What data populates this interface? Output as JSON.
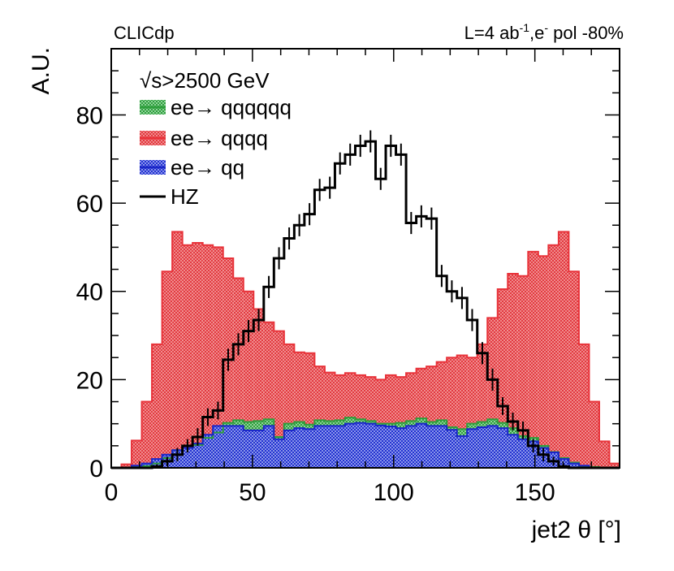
{
  "chart_data": {
    "type": "histogram",
    "xlabel": "jet2 θ [°]",
    "ylabel": "A.U.",
    "xlim": [
      0,
      180
    ],
    "ylim": [
      0,
      95
    ],
    "x_ticks": [
      0,
      50,
      100,
      150
    ],
    "y_ticks": [
      0,
      20,
      40,
      60,
      80
    ],
    "bin_width": 3.6,
    "top_left_label": "CLICdp",
    "top_right_label": "L=4 ab^-1,e^- pol -80%",
    "top_right_parts": {
      "lumi": "L=4 ab",
      "lumi_exp": "-1",
      "beam": ",e",
      "beam_exp": "-",
      "pol": " pol -80%"
    },
    "legend": {
      "header_sqrt": "√",
      "header_rest": "s>2500 GeV",
      "entries": [
        {
          "label": "ee→ qqqqqq",
          "key": "qqqqqq"
        },
        {
          "label": "ee→ qqqq",
          "key": "qqqq"
        },
        {
          "label": "ee→ qq",
          "key": "qq"
        },
        {
          "label": "HZ",
          "key": "hz"
        }
      ]
    },
    "series": [
      {
        "name": "ee→ qqqqqq",
        "key": "qqqqqq",
        "style": "stacked-fill",
        "fill": "#2e9e3c",
        "stroke": "#2e9e3c",
        "values": [
          0,
          0.1,
          0.2,
          0.4,
          1.0,
          2.2,
          4.0,
          4.5,
          5.2,
          6.8,
          8.0,
          10.2,
          10.8,
          10.4,
          10.6,
          11.0,
          7.0,
          10.0,
          10.4,
          9.8,
          10.8,
          10.6,
          10.8,
          11.4,
          11.0,
          10.6,
          10.0,
          10.0,
          10.2,
          10.6,
          11.2,
          10.4,
          10.8,
          9.2,
          8.8,
          10.0,
          10.4,
          11.0,
          10.2,
          9.0,
          7.2,
          6.8,
          5.0,
          3.6,
          2.2,
          1.2,
          0.4,
          0.2,
          0.1,
          0
        ]
      },
      {
        "name": "ee→ qqqq",
        "key": "qqqq",
        "style": "stacked-fill",
        "fill": "#e8333a",
        "stroke": "#e8333a",
        "values": [
          0,
          0.8,
          6.2,
          15.0,
          28.0,
          44.5,
          53.5,
          50.5,
          51.0,
          50.5,
          50.0,
          47.5,
          43.0,
          40.0,
          36.0,
          33.0,
          31.0,
          28.0,
          26.2,
          26.0,
          23.0,
          21.6,
          21.0,
          21.5,
          21.0,
          20.6,
          20.0,
          21.0,
          20.6,
          21.5,
          22.5,
          23.0,
          24.0,
          25.0,
          25.5,
          25.0,
          28.0,
          34.0,
          40.5,
          44.0,
          43.5,
          49.0,
          48.0,
          50.5,
          53.5,
          44.5,
          28.0,
          15.0,
          6.0,
          1.0
        ]
      },
      {
        "name": "ee→ qq",
        "key": "qq",
        "style": "stacked-fill",
        "fill": "#2a3bd6",
        "stroke": "#1a26c8",
        "values": [
          0,
          0,
          0.5,
          1.0,
          2.0,
          3.0,
          4.0,
          4.5,
          5.5,
          7.5,
          9.5,
          9.5,
          9.5,
          8.5,
          8.5,
          9.5,
          6.5,
          8.5,
          9.0,
          8.8,
          9.5,
          9.5,
          9.5,
          10.0,
          10.2,
          10.0,
          9.6,
          9.4,
          9.0,
          9.5,
          10.0,
          9.5,
          9.5,
          8.6,
          7.2,
          8.8,
          9.2,
          9.5,
          9.0,
          7.5,
          6.5,
          6.0,
          4.5,
          3.5,
          2.0,
          1.0,
          0.5,
          0,
          0,
          0
        ]
      },
      {
        "name": "HZ",
        "key": "hz",
        "style": "errorbar-step",
        "stroke": "#000000",
        "values": [
          0,
          0,
          0,
          0,
          0.3,
          1.5,
          3.0,
          5.0,
          7.0,
          11.5,
          13.0,
          24.5,
          28.0,
          31.0,
          33.5,
          41.0,
          47.5,
          52.0,
          55.0,
          57.5,
          63.0,
          63.5,
          69.0,
          71.0,
          73.0,
          74.0,
          65.5,
          73.0,
          71.0,
          55.5,
          57.0,
          56.5,
          43.5,
          40.0,
          38.5,
          33.5,
          26.0,
          20.0,
          14.0,
          10.5,
          8.5,
          5.0,
          3.0,
          1.5,
          0.3,
          0,
          0,
          0,
          0,
          0
        ],
        "errors": [
          0,
          0,
          0,
          0,
          0.5,
          1.0,
          1.5,
          1.5,
          2.0,
          2.0,
          2.0,
          2.5,
          2.5,
          2.5,
          2.5,
          2.5,
          2.5,
          2.5,
          2.5,
          2.5,
          2.5,
          2.5,
          2.5,
          2.5,
          2.5,
          2.5,
          2.5,
          2.5,
          2.5,
          2.5,
          2.5,
          2.5,
          2.5,
          2.5,
          2.5,
          2.5,
          2.5,
          2.5,
          2.0,
          2.0,
          2.0,
          1.5,
          1.5,
          1.0,
          0.5,
          0,
          0,
          0,
          0,
          0
        ]
      }
    ]
  }
}
